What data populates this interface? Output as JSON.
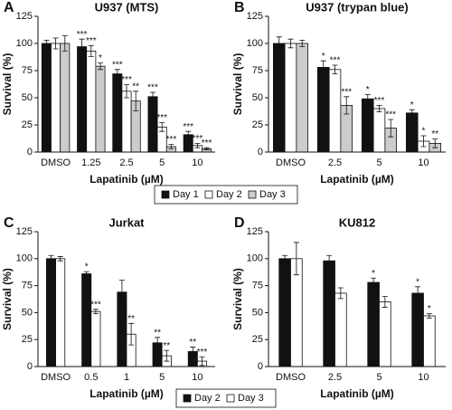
{
  "chart_data": [
    {
      "type": "bar",
      "panel": "A",
      "title": "U937 (MTS)",
      "categories": [
        "DMSO",
        "1.25",
        "2.5",
        "5",
        "10"
      ],
      "series": [
        {
          "name": "Day 1",
          "color": "#111111",
          "values": [
            100,
            97,
            72,
            51,
            16
          ],
          "errors": [
            3,
            7,
            4,
            4,
            3
          ],
          "significance": [
            null,
            "***",
            "***",
            "***",
            "***"
          ]
        },
        {
          "name": "Day 2",
          "color": "#ffffff",
          "values": [
            100,
            93,
            56,
            23,
            6
          ],
          "errors": [
            5,
            5,
            6,
            4,
            2
          ],
          "significance": [
            null,
            "***",
            "***",
            "***",
            "***"
          ]
        },
        {
          "name": "Day 3",
          "color": "#cccccc",
          "values": [
            100,
            79,
            47,
            5,
            3
          ],
          "errors": [
            7,
            3,
            9,
            2,
            1
          ],
          "significance": [
            null,
            "*",
            "**",
            "***",
            "***"
          ]
        }
      ],
      "ylim": [
        0,
        125
      ],
      "yticks": [
        0,
        25,
        50,
        75,
        100,
        125
      ],
      "y_label": "Survival (%)",
      "x_label": "Lapatinib (µM)",
      "legend": "below"
    },
    {
      "type": "bar",
      "panel": "B",
      "title": "U937 (trypan blue)",
      "categories": [
        "DMSO",
        "2.5",
        "5",
        "10"
      ],
      "series": [
        {
          "name": "Day 1",
          "color": "#111111",
          "values": [
            100,
            78,
            49,
            36
          ],
          "errors": [
            6,
            6,
            4,
            3
          ],
          "significance": [
            null,
            "*",
            "*",
            "*"
          ]
        },
        {
          "name": "Day 2",
          "color": "#ffffff",
          "values": [
            100,
            76,
            40,
            10
          ],
          "errors": [
            4,
            4,
            3,
            5
          ],
          "significance": [
            null,
            "***",
            "***",
            "*"
          ]
        },
        {
          "name": "Day 3",
          "color": "#cccccc",
          "values": [
            100,
            43,
            22,
            8
          ],
          "errors": [
            3,
            8,
            8,
            4
          ],
          "significance": [
            null,
            "***",
            "***",
            "**"
          ]
        }
      ],
      "ylim": [
        0,
        125
      ],
      "yticks": [
        0,
        25,
        50,
        75,
        100,
        125
      ],
      "y_label": "Survival (%)",
      "x_label": "Lapatinib (µM)"
    },
    {
      "type": "bar",
      "panel": "C",
      "title": "Jurkat",
      "categories": [
        "DMSO",
        "0.5",
        "1",
        "5",
        "10"
      ],
      "series": [
        {
          "name": "Day 2",
          "color": "#111111",
          "values": [
            100,
            86,
            69,
            22,
            14
          ],
          "errors": [
            3,
            2,
            11,
            5,
            4
          ],
          "significance": [
            null,
            "*",
            null,
            "**",
            "**"
          ]
        },
        {
          "name": "Day 3",
          "color": "#ffffff",
          "values": [
            100,
            51,
            30,
            10,
            5
          ],
          "errors": [
            2,
            2,
            10,
            5,
            4
          ],
          "significance": [
            null,
            "***",
            "**",
            "**",
            "***"
          ]
        }
      ],
      "ylim": [
        0,
        125
      ],
      "yticks": [
        0,
        25,
        50,
        75,
        100,
        125
      ],
      "y_label": "Survival (%)",
      "x_label": "Lapatinib (µM)",
      "legend": "below"
    },
    {
      "type": "bar",
      "panel": "D",
      "title": "KU812",
      "categories": [
        "DMSO",
        "2.5",
        "5",
        "10"
      ],
      "series": [
        {
          "name": "Day 2",
          "color": "#111111",
          "values": [
            100,
            98,
            78,
            68
          ],
          "errors": [
            3,
            5,
            4,
            6
          ],
          "significance": [
            null,
            null,
            "*",
            "*"
          ]
        },
        {
          "name": "Day 3",
          "color": "#ffffff",
          "values": [
            100,
            68,
            60,
            47
          ],
          "errors": [
            15,
            5,
            5,
            2
          ],
          "significance": [
            null,
            null,
            null,
            "*"
          ]
        }
      ],
      "ylim": [
        0,
        125
      ],
      "yticks": [
        0,
        25,
        50,
        75,
        100,
        125
      ],
      "y_label": "Survival (%)",
      "x_label": "Lapatinib (µM)"
    }
  ]
}
